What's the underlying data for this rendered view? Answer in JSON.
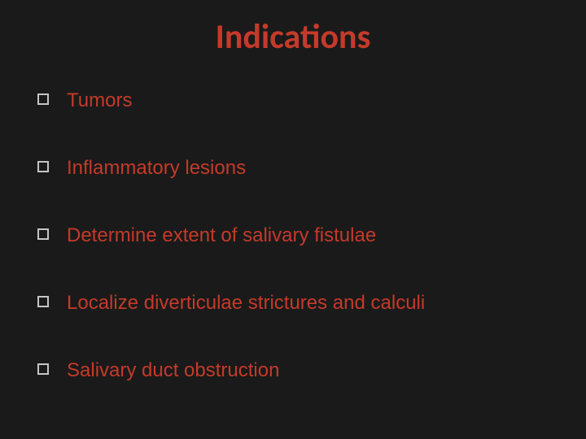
{
  "slide": {
    "background_color": "#1a1a1a",
    "title": {
      "text": "Indications",
      "color": "#c53a2a",
      "fontsize": 42,
      "font_family": "'Segoe UI', 'Calibri', Arial, sans-serif",
      "font_weight": "bold"
    },
    "bullets": {
      "marker_border_color": "#c5c5c5",
      "marker_size": 14,
      "text_color": "#c53a2a",
      "fontsize": 24,
      "font_family": "Arial, Helvetica, sans-serif",
      "items": [
        "Tumors",
        "Inflammatory lesions",
        "Determine extent of salivary fistulae",
        "Localize diverticulae strictures and calculi",
        "Salivary duct obstruction"
      ]
    }
  }
}
